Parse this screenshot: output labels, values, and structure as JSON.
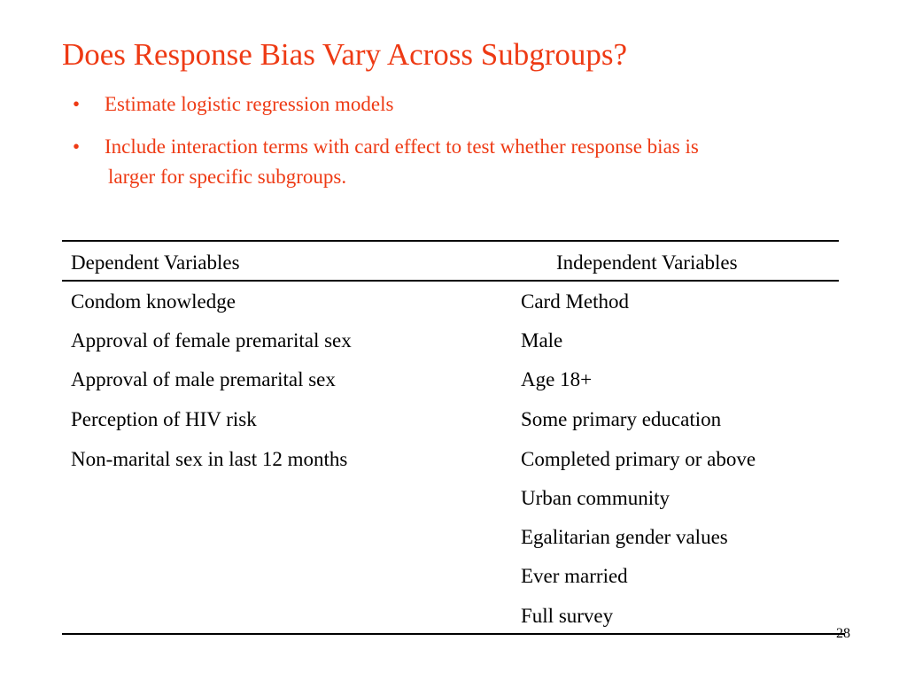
{
  "title": "Does Response Bias Vary Across Subgroups?",
  "bullets": [
    {
      "symbol": "•",
      "line1": "Estimate logistic regression models",
      "line2": ""
    },
    {
      "symbol": "•",
      "line1": "Include interaction terms with card effect to test whether response bias is",
      "line2": "larger for specific subgroups."
    }
  ],
  "table": {
    "headers": {
      "dependent": "Dependent  Variables",
      "independent": "Independent Variables"
    },
    "dependent_variables": [
      "Condom knowledge",
      "Approval of female premarital sex",
      "Approval of male premarital sex",
      "Perception of HIV risk",
      "Non-marital sex in last 12 months"
    ],
    "independent_variables": [
      "Card Method",
      "Male",
      "Age 18+",
      "Some primary education",
      "Completed primary or above",
      "Urban community",
      "Egalitarian gender values",
      "Ever married",
      "Full survey"
    ]
  },
  "page_number": "28",
  "colors": {
    "accent": "#ee3a14",
    "text": "#000000",
    "background": "#ffffff"
  }
}
